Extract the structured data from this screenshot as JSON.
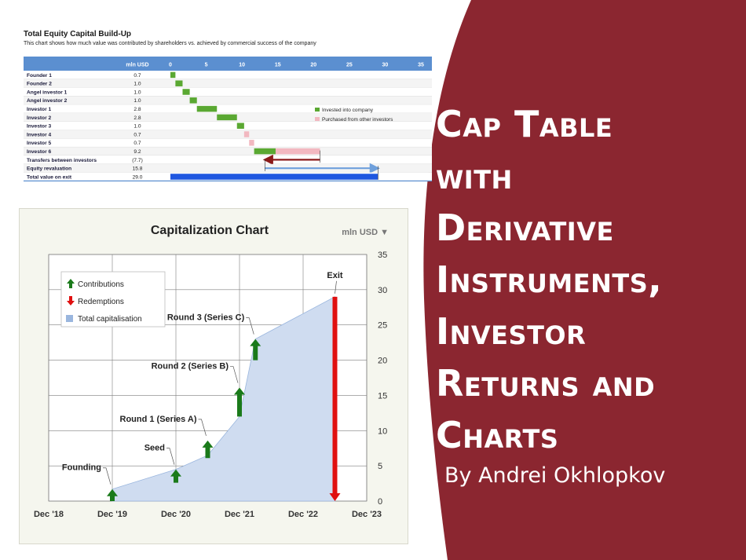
{
  "slide": {
    "title_lines": [
      "Cap Table",
      "with",
      "Derivative",
      "Instruments,",
      "Investor",
      "Returns and",
      "Charts"
    ],
    "author": "By Andrei Okhlopkov",
    "colors": {
      "maroon": "#8b2630",
      "text": "#ffffff"
    }
  },
  "chart_data": [
    {
      "type": "bar",
      "title": "Total Equity Capital Build-Up",
      "subtitle": "This chart shows how much value was contributed by shareholders vs. achieved by commercial success of the company",
      "value_header": "mln USD",
      "xticks": [
        0,
        5,
        10,
        15,
        20,
        25,
        30,
        35
      ],
      "xlim": [
        0,
        35
      ],
      "legend": [
        {
          "label": "Invested into company",
          "color": "#5aa832"
        },
        {
          "label": "Purchased from other investors",
          "color": "#f2b8c0"
        }
      ],
      "rows": [
        {
          "label": "Founder 1",
          "value_text": "0.7",
          "start": 0.0,
          "value": 0.7,
          "kind": "invested"
        },
        {
          "label": "Founder 2",
          "value_text": "1.0",
          "start": 0.7,
          "value": 1.0,
          "kind": "invested"
        },
        {
          "label": "Angel investor 1",
          "value_text": "1.0",
          "start": 1.7,
          "value": 1.0,
          "kind": "invested"
        },
        {
          "label": "Angel investor 2",
          "value_text": "1.0",
          "start": 2.7,
          "value": 1.0,
          "kind": "invested"
        },
        {
          "label": "Investor 1",
          "value_text": "2.8",
          "start": 3.7,
          "value": 2.8,
          "kind": "invested"
        },
        {
          "label": "Investor 2",
          "value_text": "2.8",
          "start": 6.5,
          "value": 2.8,
          "kind": "invested"
        },
        {
          "label": "Investor 3",
          "value_text": "1.0",
          "start": 9.3,
          "value": 1.0,
          "kind": "invested"
        },
        {
          "label": "Investor 4",
          "value_text": "0.7",
          "start": 10.3,
          "value": 0.7,
          "kind": "purchased"
        },
        {
          "label": "Investor 5",
          "value_text": "0.7",
          "start": 11.0,
          "value": 0.7,
          "kind": "purchased"
        },
        {
          "label": "Investor 6",
          "value_text": "9.2",
          "start": 11.7,
          "value": 9.2,
          "kind": "mixed",
          "invested_part": 3.0
        },
        {
          "label": "Transfers between investors",
          "value_text": "(7.7)",
          "start": 20.9,
          "value": -7.7,
          "kind": "transfer"
        },
        {
          "label": "Equity revaluation",
          "value_text": "15.8",
          "start": 13.2,
          "value": 15.8,
          "kind": "revaluation"
        },
        {
          "label": "Total value on exit",
          "value_text": "29.0",
          "start": 0.0,
          "value": 29.0,
          "kind": "total"
        }
      ]
    },
    {
      "type": "area",
      "title": "Capitalization Chart",
      "unit_label": "mln USD ▼",
      "x_ticks": [
        "Dec '18",
        "Dec '19",
        "Dec '20",
        "Dec '21",
        "Dec '22",
        "Dec '23"
      ],
      "y_ticks": [
        0,
        5,
        10,
        15,
        20,
        25,
        30,
        35
      ],
      "ylim": [
        0,
        35
      ],
      "xlim": [
        2018.917,
        2023.917
      ],
      "grid": true,
      "legend_position": "top-left",
      "legend": [
        {
          "label": "Contributions",
          "color": "#1a7a1a"
        },
        {
          "label": "Redemptions",
          "color": "#e01010"
        },
        {
          "label": "Total capitalisation",
          "color": "#9ab6de"
        }
      ],
      "series": [
        {
          "name": "Total capitalisation",
          "x": [
            2019.917,
            2020.917,
            2021.417,
            2021.917,
            2022.167,
            2023.417
          ],
          "y": [
            1.7,
            4.5,
            6.5,
            12.0,
            23.0,
            29.0
          ]
        }
      ],
      "contributions": [
        {
          "x": 2019.917,
          "from": 0,
          "to": 1.7
        },
        {
          "x": 2020.917,
          "from": 2.6,
          "to": 4.5
        },
        {
          "x": 2021.417,
          "from": 6.1,
          "to": 8.6
        },
        {
          "x": 2021.917,
          "from": 12.0,
          "to": 16.1
        },
        {
          "x": 2022.167,
          "from": 20.0,
          "to": 23.0
        }
      ],
      "redemptions": [
        {
          "x": 2023.417,
          "from": 29.0,
          "to": 0
        }
      ],
      "annotations": [
        {
          "label": "Founding",
          "x": 2019.917,
          "y": 1.7,
          "placement": "upper-left"
        },
        {
          "label": "Seed",
          "x": 2020.917,
          "y": 4.5,
          "placement": "upper-left"
        },
        {
          "label": "Round 1 (Series A)",
          "x": 2021.417,
          "y": 8.6,
          "placement": "upper-left"
        },
        {
          "label": "Round 2 (Series B)",
          "x": 2021.917,
          "y": 16.1,
          "placement": "upper-left"
        },
        {
          "label": "Round 3 (Series C)",
          "x": 2022.167,
          "y": 23.0,
          "placement": "upper-left"
        },
        {
          "label": "Exit",
          "x": 2023.417,
          "y": 29.0,
          "placement": "top"
        }
      ]
    }
  ]
}
